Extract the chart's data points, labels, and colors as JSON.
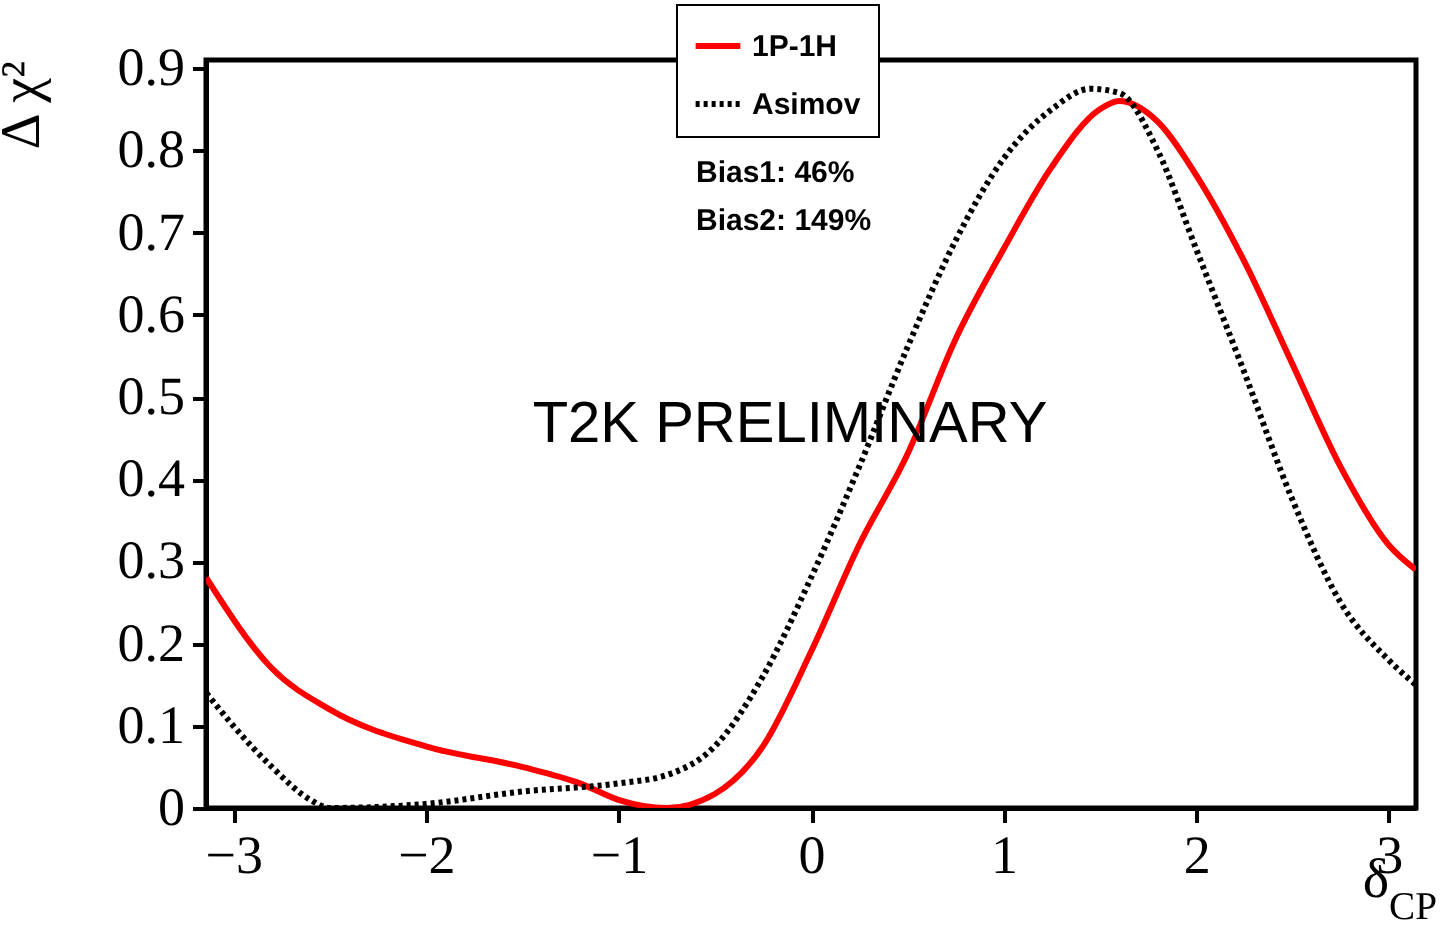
{
  "chart_data": {
    "type": "line",
    "xlabel": "δ$_{CP}$",
    "ylabel": "Δ χ²",
    "xlim": [
      -3.1416,
      3.1416
    ],
    "ylim": [
      0,
      0.91
    ],
    "xticks": [
      {
        "value": -3,
        "label": "−3"
      },
      {
        "value": -2,
        "label": "−2"
      },
      {
        "value": -1,
        "label": "−1"
      },
      0,
      1,
      2,
      3
    ],
    "yticks": [
      0,
      0.1,
      0.2,
      0.3,
      0.4,
      0.5,
      0.6,
      0.7,
      0.8,
      0.9
    ],
    "grid": false,
    "legend": "top",
    "marker": "none",
    "annotations": [
      "T2K PRELIMINARY",
      "Bias1: 46%",
      "Bias2: 149%"
    ],
    "series": [
      {
        "name": "1P-1H",
        "color": "#ff0000",
        "line_style": "solid",
        "x": [
          -3.14,
          -2.8,
          -2.5,
          -2.0,
          -1.5,
          -1.2,
          -1.0,
          -0.75,
          -0.5,
          -0.25,
          0,
          0.25,
          0.5,
          0.75,
          1.0,
          1.25,
          1.5,
          1.6,
          1.8,
          2.0,
          2.25,
          2.5,
          2.75,
          3.0,
          3.14
        ],
        "values": [
          0.28,
          0.17,
          0.12,
          0.075,
          0.05,
          0.03,
          0.01,
          0.0,
          0.017,
          0.075,
          0.19,
          0.32,
          0.43,
          0.57,
          0.68,
          0.78,
          0.85,
          0.86,
          0.835,
          0.77,
          0.665,
          0.54,
          0.415,
          0.32,
          0.29
        ]
      },
      {
        "name": "Asimov",
        "color": "#000000",
        "line_style": "dotted",
        "x": [
          -3.14,
          -3.0,
          -2.8,
          -2.6,
          -2.5,
          -2.0,
          -1.5,
          -1.0,
          -0.75,
          -0.5,
          -0.25,
          0,
          0.25,
          0.5,
          0.75,
          1.0,
          1.25,
          1.45,
          1.6,
          1.8,
          2.0,
          2.25,
          2.5,
          2.75,
          3.0,
          3.14
        ],
        "values": [
          0.14,
          0.1,
          0.05,
          0.01,
          0.0,
          0.005,
          0.02,
          0.03,
          0.04,
          0.075,
          0.16,
          0.28,
          0.415,
          0.56,
          0.69,
          0.79,
          0.85,
          0.875,
          0.87,
          0.8,
          0.68,
          0.53,
          0.375,
          0.25,
          0.18,
          0.15
        ]
      }
    ]
  }
}
